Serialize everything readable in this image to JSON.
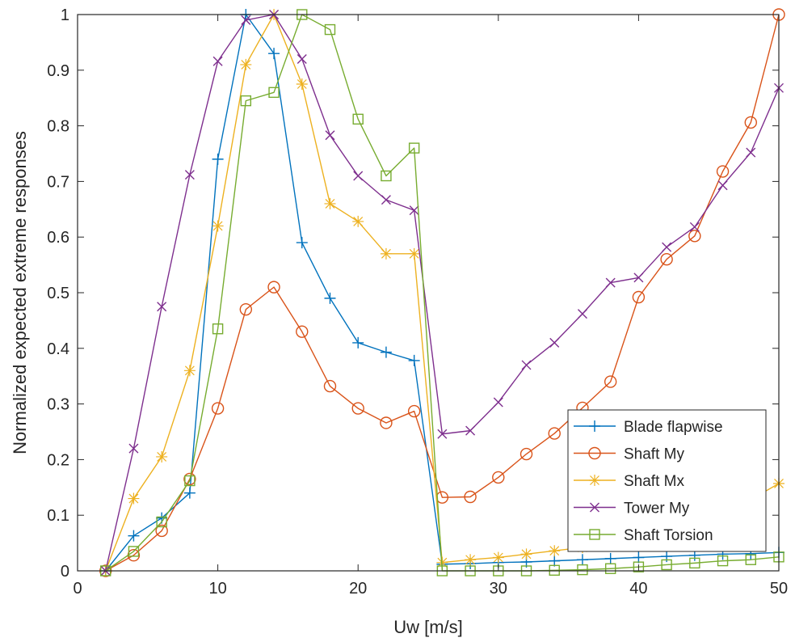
{
  "chart_data": {
    "type": "line",
    "title": "",
    "xlabel": "Uw [m/s]",
    "ylabel": "Normalized expected extreme responses",
    "xlim": [
      0,
      50
    ],
    "ylim": [
      0,
      1
    ],
    "xticks": [
      0,
      10,
      20,
      30,
      40,
      50
    ],
    "yticks": [
      0,
      0.1,
      0.2,
      0.3,
      0.4,
      0.5,
      0.6,
      0.7,
      0.8,
      0.9,
      1
    ],
    "xtick_labels": [
      "0",
      "10",
      "20",
      "30",
      "40",
      "50"
    ],
    "ytick_labels": [
      "0",
      "0.1",
      "0.2",
      "0.3",
      "0.4",
      "0.5",
      "0.6",
      "0.7",
      "0.8",
      "0.9",
      "1"
    ],
    "grid": false,
    "legend_position": "lower-right",
    "x": [
      2,
      4,
      6,
      8,
      10,
      12,
      14,
      16,
      18,
      20,
      22,
      24,
      26,
      28,
      30,
      32,
      34,
      36,
      38,
      40,
      42,
      44,
      46,
      48,
      50
    ],
    "series": [
      {
        "name": "Blade flapwise",
        "color": "#0072BD",
        "marker": "plus",
        "values": [
          0,
          0.063,
          0.095,
          0.14,
          0.74,
          1.0,
          0.93,
          0.59,
          0.49,
          0.41,
          0.393,
          0.378,
          0.012,
          0.013,
          0.015,
          0.016,
          0.018,
          0.02,
          0.022,
          0.024,
          0.026,
          0.028,
          0.03,
          0.031,
          0.033
        ]
      },
      {
        "name": "Shaft My",
        "color": "#D95319",
        "marker": "circle",
        "values": [
          0,
          0.028,
          0.072,
          0.165,
          0.292,
          0.47,
          0.51,
          0.43,
          0.332,
          0.292,
          0.266,
          0.287,
          0.132,
          0.133,
          0.168,
          0.21,
          0.247,
          0.293,
          0.34,
          0.492,
          0.56,
          0.602,
          0.718,
          0.806,
          1.0
        ]
      },
      {
        "name": "Shaft Mx",
        "color": "#EDB120",
        "marker": "asterisk",
        "values": [
          0,
          0.13,
          0.205,
          0.36,
          0.62,
          0.91,
          1.0,
          0.875,
          0.66,
          0.628,
          0.57,
          0.57,
          0.015,
          0.02,
          0.024,
          0.03,
          0.036,
          0.042,
          0.052,
          0.065,
          0.08,
          0.095,
          0.11,
          0.128,
          0.157
        ]
      },
      {
        "name": "Tower My",
        "color": "#7E2F8E",
        "marker": "cross",
        "values": [
          0,
          0.22,
          0.475,
          0.712,
          0.916,
          0.99,
          1.0,
          0.92,
          0.783,
          0.71,
          0.667,
          0.648,
          0.246,
          0.252,
          0.303,
          0.37,
          0.41,
          0.462,
          0.518,
          0.527,
          0.582,
          0.618,
          0.693,
          0.752,
          0.868
        ]
      },
      {
        "name": "Shaft Torsion",
        "color": "#77AC30",
        "marker": "square",
        "values": [
          0,
          0.035,
          0.088,
          0.162,
          0.435,
          0.845,
          0.86,
          1.0,
          0.973,
          0.812,
          0.71,
          0.76,
          0.0,
          0.0,
          0.0,
          0.0,
          0.001,
          0.002,
          0.004,
          0.007,
          0.011,
          0.014,
          0.018,
          0.02,
          0.025
        ]
      }
    ]
  }
}
